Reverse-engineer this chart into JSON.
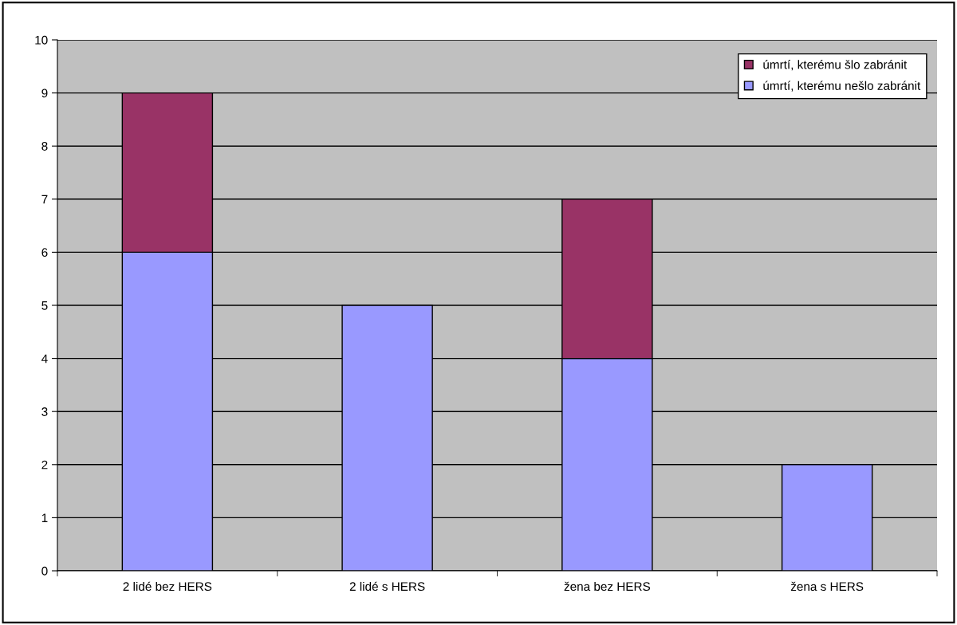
{
  "chart_data": {
    "type": "bar",
    "stacked": true,
    "categories": [
      "2 lidé bez HERS",
      "2 lidé s HERS",
      "žena bez HERS",
      "žena s HERS"
    ],
    "series": [
      {
        "name": "úmrtí, kterému nešlo zabránit",
        "color": "#9999ff",
        "values": [
          6,
          5,
          4,
          2
        ]
      },
      {
        "name": "úmrtí, kterému šlo zabránit",
        "color": "#993366",
        "values": [
          3,
          null,
          3,
          null
        ]
      }
    ],
    "ylim": [
      0,
      10
    ],
    "yticks": [
      0,
      1,
      2,
      3,
      4,
      5,
      6,
      7,
      8,
      9,
      10
    ],
    "grid": "y",
    "legend": "top right"
  }
}
